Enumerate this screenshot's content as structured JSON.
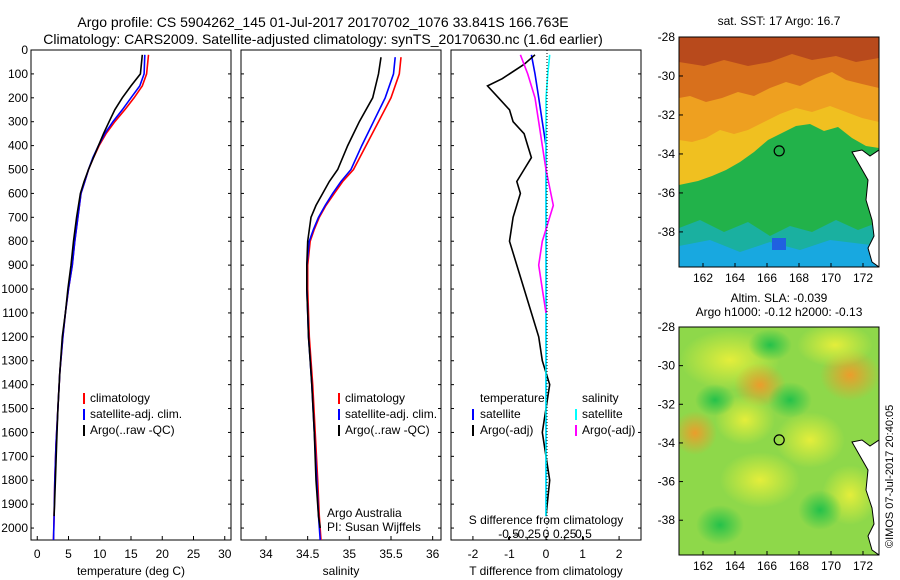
{
  "header": {
    "line1": "Argo profile: CS 5904262_145 01-Jul-2017 20170702_1076 33.841S 166.763E",
    "line2": "Climatology: CARS2009. Satellite-adjusted climatology: synTS_20170630.nc (1.6d earlier)"
  },
  "credits": {
    "org": "Argo Australia",
    "pi": "PI: Susan Wijffels",
    "side": "©IMOS 07-Jul-2017 20:40:05"
  },
  "colors": {
    "climatology": "#ff0000",
    "satellite": "#0000ff",
    "argo": "#000000",
    "sal_satellite": "#00ffff",
    "sal_argo": "#ff00ff"
  },
  "chart_data": [
    {
      "type": "line",
      "panel": "temperature",
      "xlabel": "temperature (deg C)",
      "xlim": [
        -1,
        31
      ],
      "ylim": [
        2050,
        0
      ],
      "xticks": [
        0,
        5,
        10,
        15,
        20,
        25,
        30
      ],
      "yticks": [
        0,
        100,
        200,
        300,
        400,
        500,
        600,
        700,
        800,
        900,
        1000,
        1100,
        1200,
        1300,
        1400,
        1500,
        1600,
        1700,
        1800,
        1900,
        2000
      ],
      "legend": [
        "climatology",
        "satellite-adj. clim.",
        "Argo(..raw -QC)"
      ],
      "series": [
        {
          "name": "climatology",
          "color": "#ff0000",
          "x": [
            17.8,
            17.5,
            16.8,
            15.5,
            14.0,
            12.4,
            11.0,
            9.9,
            9.0,
            8.2,
            7.6,
            7.0,
            6.5,
            6.0,
            5.6,
            5.0,
            4.5,
            4.1,
            3.6,
            3.3,
            3.0,
            2.8,
            2.7,
            2.6
          ],
          "y": [
            20,
            100,
            150,
            200,
            250,
            300,
            350,
            400,
            450,
            500,
            550,
            600,
            700,
            800,
            900,
            1000,
            1100,
            1200,
            1350,
            1500,
            1650,
            1800,
            1950,
            2050
          ]
        },
        {
          "name": "satellite-adj. clim.",
          "color": "#0000ff",
          "x": [
            17.2,
            17.1,
            16.4,
            15.0,
            13.6,
            12.1,
            10.8,
            9.8,
            8.9,
            8.2,
            7.6,
            7.0,
            6.5,
            6.0,
            5.6,
            5.0,
            4.5,
            4.1,
            3.6,
            3.3,
            3.0,
            2.8,
            2.7,
            2.6
          ],
          "y": [
            20,
            100,
            150,
            200,
            250,
            300,
            350,
            400,
            450,
            500,
            550,
            600,
            700,
            800,
            900,
            1000,
            1100,
            1200,
            1350,
            1500,
            1650,
            1800,
            1950,
            2050
          ]
        },
        {
          "name": "Argo(..raw -QC)",
          "color": "#000000",
          "x": [
            16.8,
            16.5,
            15.0,
            13.6,
            12.4,
            11.5,
            10.6,
            9.8,
            9.0,
            8.2,
            7.5,
            6.9,
            6.3,
            5.8,
            5.4,
            4.9,
            4.5,
            4.0,
            3.6,
            3.3,
            3.1,
            2.9,
            2.7
          ],
          "y": [
            20,
            100,
            150,
            200,
            250,
            300,
            350,
            400,
            450,
            500,
            550,
            600,
            700,
            800,
            900,
            1000,
            1100,
            1200,
            1350,
            1500,
            1650,
            1800,
            1950
          ]
        }
      ]
    },
    {
      "type": "line",
      "panel": "salinity",
      "xlabel": "salinity",
      "xlim": [
        33.7,
        36.1
      ],
      "ylim": [
        2050,
        0
      ],
      "xticks": [
        34,
        34.5,
        35,
        35.5,
        36
      ],
      "legend": [
        "climatology",
        "satellite-adj. clim.",
        "Argo(..raw -QC)"
      ],
      "series": [
        {
          "name": "climatology",
          "color": "#ff0000",
          "x": [
            35.62,
            35.6,
            35.5,
            35.35,
            35.2,
            35.05,
            34.92,
            34.82,
            34.72,
            34.64,
            34.58,
            34.53,
            34.5,
            34.5,
            34.51,
            34.52,
            34.54,
            34.56,
            34.59,
            34.62,
            34.64,
            34.66
          ],
          "y": [
            30,
            100,
            200,
            300,
            400,
            500,
            550,
            600,
            650,
            700,
            750,
            800,
            900,
            1000,
            1100,
            1200,
            1300,
            1400,
            1600,
            1800,
            1950,
            2050
          ]
        },
        {
          "name": "satellite-adj. clim.",
          "color": "#0000ff",
          "x": [
            35.55,
            35.53,
            35.43,
            35.29,
            35.15,
            35.02,
            34.9,
            34.8,
            34.71,
            34.63,
            34.57,
            34.52,
            34.49,
            34.49,
            34.5,
            34.51,
            34.53,
            34.55,
            34.58,
            34.61,
            34.63,
            34.65
          ],
          "y": [
            30,
            100,
            200,
            300,
            400,
            500,
            550,
            600,
            650,
            700,
            750,
            800,
            900,
            1000,
            1100,
            1200,
            1300,
            1400,
            1600,
            1800,
            1950,
            2050
          ]
        },
        {
          "name": "Argo(..raw -QC)",
          "color": "#000000",
          "x": [
            35.38,
            35.35,
            35.28,
            35.12,
            34.98,
            34.86,
            34.76,
            34.68,
            34.6,
            34.54,
            34.5,
            34.49,
            34.49,
            34.5,
            34.51,
            34.53,
            34.55,
            34.58,
            34.6,
            34.63,
            34.65
          ],
          "y": [
            30,
            100,
            200,
            300,
            400,
            500,
            550,
            600,
            650,
            700,
            800,
            900,
            1000,
            1100,
            1200,
            1300,
            1400,
            1600,
            1800,
            1950,
            2000
          ]
        }
      ]
    },
    {
      "type": "line",
      "panel": "difference",
      "xlabel": "T difference from climatology",
      "xlabel2": "S difference from climatology",
      "xlim": [
        -2.6,
        2.6
      ],
      "ylim": [
        2050,
        0
      ],
      "xticks": [
        -2,
        -1,
        0,
        1,
        2
      ],
      "xticklabels": [
        "-2",
        "-1",
        "0",
        "1",
        "2"
      ],
      "sticks": [
        -0.5,
        -0.25,
        0,
        0.25,
        0.5
      ],
      "sticklabels": [
        "-0.5",
        "-0.25",
        "0",
        "0.25",
        "0.5"
      ],
      "legend": [
        "temperature",
        "satellite",
        "Argo(-adj)",
        "salinity",
        "satellite",
        "Argo(-adj)"
      ],
      "series": [
        {
          "name": "satellite",
          "color": "#0000ff",
          "x": [
            -0.4,
            -0.3,
            -0.2,
            -0.1,
            0,
            0,
            0,
            0,
            0,
            0,
            0
          ],
          "y": [
            20,
            100,
            200,
            300,
            400,
            600,
            800,
            1000,
            1300,
            1600,
            1950
          ]
        },
        {
          "name": "Argo(-adj)",
          "color": "#000000",
          "x": [
            -0.3,
            -0.6,
            -1.2,
            -1.6,
            -1.3,
            -1.0,
            -0.9,
            -0.6,
            -0.5,
            -0.4,
            -0.6,
            -0.8,
            -0.7,
            -0.9,
            -1.0,
            -0.8,
            -0.6,
            -0.4,
            -0.2,
            -0.1,
            0.1,
            0.0,
            -0.1,
            0.0,
            0.1,
            0.0
          ],
          "y": [
            20,
            60,
            120,
            150,
            200,
            250,
            300,
            350,
            400,
            450,
            500,
            550,
            600,
            700,
            800,
            900,
            1000,
            1100,
            1200,
            1300,
            1400,
            1500,
            1600,
            1700,
            1800,
            1950
          ]
        },
        {
          "name": "satellite",
          "color": "#00ffff",
          "x": [
            0.1,
            0.05,
            0,
            0,
            0,
            0,
            0,
            0,
            0,
            0
          ],
          "y": [
            20,
            100,
            200,
            400,
            600,
            800,
            1000,
            1300,
            1600,
            1950
          ]
        },
        {
          "name": "Argo(-adj)",
          "color": "#ff00ff",
          "x": [
            -0.7,
            -0.5,
            -0.3,
            -0.2,
            -0.1,
            0.0,
            0.2,
            0.0,
            -0.1,
            -0.2,
            -0.1,
            0.0
          ],
          "y": [
            20,
            100,
            200,
            300,
            400,
            500,
            650,
            750,
            800,
            900,
            1000,
            1100
          ]
        }
      ]
    },
    {
      "type": "heatmap",
      "panel": "sst-map",
      "title": "sat. SST: 17 Argo: 16.7",
      "xlim": [
        160.5,
        173
      ],
      "ylim": [
        -39.8,
        -28
      ],
      "xticks": [
        162,
        164,
        166,
        168,
        170,
        172
      ],
      "yticks": [
        -28,
        -30,
        -32,
        -34,
        -36,
        -38
      ],
      "marker": {
        "lon": 166.763,
        "lat": -33.841
      }
    },
    {
      "type": "heatmap",
      "panel": "sla-map",
      "title": "Altim. SLA: -0.039",
      "title2": "Argo h1000: -0.12 h2000: -0.13",
      "xlim": [
        160.5,
        173
      ],
      "ylim": [
        -39.8,
        -28
      ],
      "xticks": [
        162,
        164,
        166,
        168,
        170,
        172
      ],
      "yticks": [
        -28,
        -30,
        -32,
        -34,
        -36,
        -38
      ],
      "marker": {
        "lon": 166.763,
        "lat": -33.841
      }
    }
  ]
}
